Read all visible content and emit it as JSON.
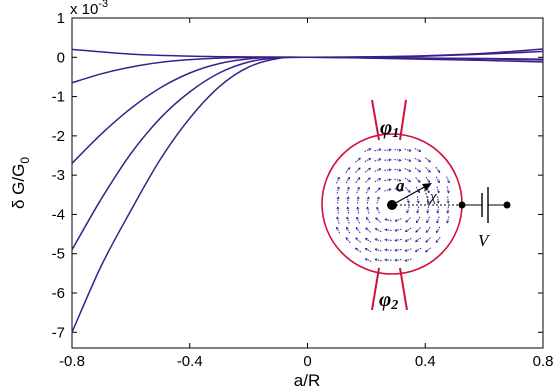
{
  "chart_data": {
    "type": "line",
    "title": "",
    "xlabel": "a/R",
    "ylabel": "δ G/G",
    "ylabel_subscript": "0",
    "y_multiplier_base": "x 10",
    "y_multiplier_exp": "-3",
    "xlim": [
      -0.8,
      0.8
    ],
    "ylim": [
      -7.4,
      1.0
    ],
    "x_ticks": [
      -0.8,
      -0.4,
      0,
      0.4,
      0.8
    ],
    "x_tick_labels": [
      "-0.8",
      "-0.4",
      "0",
      "0.4",
      "0.8"
    ],
    "y_ticks": [
      1,
      0,
      -1,
      -2,
      -3,
      -4,
      -5,
      -6,
      -7
    ],
    "y_tick_labels": [
      "1",
      "0",
      "-1",
      "-2",
      "-3",
      "-4",
      "-5",
      "-6",
      "-7"
    ],
    "grid": false,
    "line_color": "#3a1f8a",
    "series": [
      {
        "x": [
          -0.8,
          -0.6,
          -0.4,
          -0.2,
          0,
          0.2,
          0.4,
          0.6,
          0.8
        ],
        "y": [
          0.2,
          0.08,
          0.03,
          0.01,
          0,
          -0.01,
          -0.02,
          -0.04,
          -0.07
        ]
      },
      {
        "x": [
          -0.8,
          -0.7,
          -0.6,
          -0.5,
          -0.4,
          -0.3,
          -0.2,
          -0.1,
          0,
          0.2,
          0.4,
          0.6,
          0.8
        ],
        "y": [
          -0.65,
          -0.42,
          -0.25,
          -0.13,
          -0.06,
          -0.02,
          -0.005,
          0,
          0,
          0.01,
          0.03,
          0.08,
          0.15
        ]
      },
      {
        "x": [
          -0.8,
          -0.7,
          -0.6,
          -0.5,
          -0.4,
          -0.3,
          -0.2,
          -0.1,
          0,
          0.2,
          0.4,
          0.6,
          0.8
        ],
        "y": [
          -2.7,
          -1.95,
          -1.3,
          -0.78,
          -0.4,
          -0.16,
          -0.04,
          0,
          0,
          -0.01,
          -0.02,
          -0.03,
          -0.05
        ]
      },
      {
        "x": [
          -0.8,
          -0.7,
          -0.6,
          -0.5,
          -0.4,
          -0.3,
          -0.2,
          -0.1,
          0,
          0.2,
          0.4,
          0.6,
          0.8
        ],
        "y": [
          -4.9,
          -3.6,
          -2.45,
          -1.55,
          -0.88,
          -0.4,
          -0.12,
          -0.01,
          0,
          0.01,
          0.04,
          0.1,
          0.21
        ]
      },
      {
        "x": [
          -0.8,
          -0.7,
          -0.6,
          -0.5,
          -0.4,
          -0.3,
          -0.2,
          -0.1,
          0,
          0.2,
          0.4,
          0.6,
          0.8
        ],
        "y": [
          -7.0,
          -5.3,
          -3.9,
          -2.6,
          -1.55,
          -0.75,
          -0.25,
          -0.03,
          0,
          -0.02,
          -0.05,
          -0.08,
          -0.12
        ]
      }
    ]
  },
  "inset": {
    "phi_symbol": "φ",
    "phi1_subscript": "1",
    "phi2_subscript": "2",
    "radius_label": "a",
    "angle_label": "χ",
    "voltage_label": "V",
    "ring_color": "#d0103a",
    "arrow_color": "#2a2a9a"
  }
}
